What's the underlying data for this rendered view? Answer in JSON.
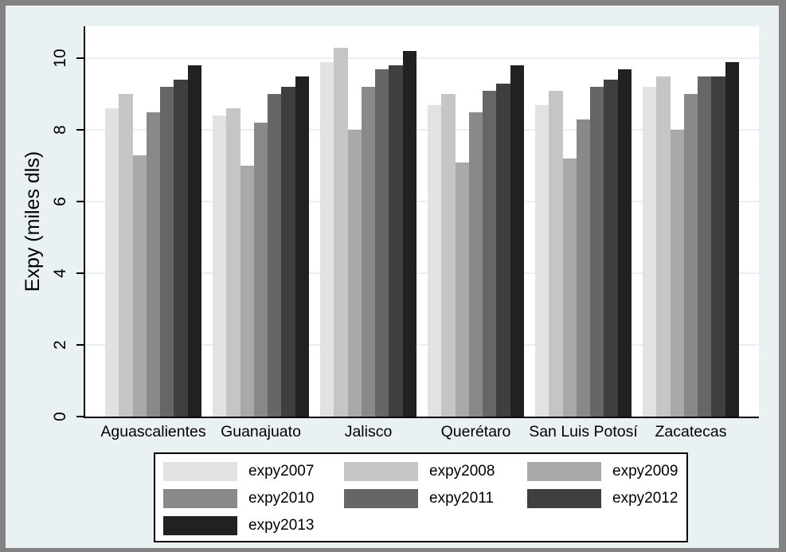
{
  "colors": {
    "page_background": "#eaf1f2",
    "frame_border": "#828282",
    "plot_background": "#ffffff",
    "gridline": "#e8eef1",
    "axis_line": "#000000",
    "text": "#000000"
  },
  "chart_data": {
    "type": "bar",
    "title": "",
    "ylabel": "Expy (miles dls)",
    "xlabel": "",
    "categories": [
      "Aguascalientes",
      "Guanajuato",
      "Jalisco",
      "Querétaro",
      "San Luis Potosí",
      "Zacatecas"
    ],
    "series": [
      {
        "name": "expy2007",
        "color": "#e2e2e2",
        "values": [
          8.6,
          8.4,
          9.9,
          8.7,
          8.7,
          9.2
        ]
      },
      {
        "name": "expy2008",
        "color": "#c5c5c5",
        "values": [
          9.0,
          8.6,
          10.3,
          9.0,
          9.1,
          9.5
        ]
      },
      {
        "name": "expy2009",
        "color": "#a9a9a9",
        "values": [
          7.3,
          7.0,
          8.0,
          7.1,
          7.2,
          8.0
        ]
      },
      {
        "name": "expy2010",
        "color": "#898989",
        "values": [
          8.5,
          8.2,
          9.2,
          8.5,
          8.3,
          9.0
        ]
      },
      {
        "name": "expy2011",
        "color": "#666666",
        "values": [
          9.2,
          9.0,
          9.7,
          9.1,
          9.2,
          9.5
        ]
      },
      {
        "name": "expy2012",
        "color": "#3f3f3f",
        "values": [
          9.4,
          9.2,
          9.8,
          9.3,
          9.4,
          9.5
        ]
      },
      {
        "name": "expy2013",
        "color": "#212121",
        "values": [
          9.8,
          9.5,
          10.2,
          9.8,
          9.7,
          9.9
        ]
      }
    ],
    "y_ticks": [
      0,
      2,
      4,
      6,
      8,
      10
    ],
    "y_tick_labels": [
      "0",
      "2",
      "4",
      "6",
      "8",
      "10"
    ],
    "ylim": [
      0,
      10.9
    ],
    "grid": true,
    "legend_position": "bottom",
    "legend_entries": [
      "expy2007",
      "expy2008",
      "expy2009",
      "expy2010",
      "expy2011",
      "expy2012",
      "expy2013"
    ]
  }
}
